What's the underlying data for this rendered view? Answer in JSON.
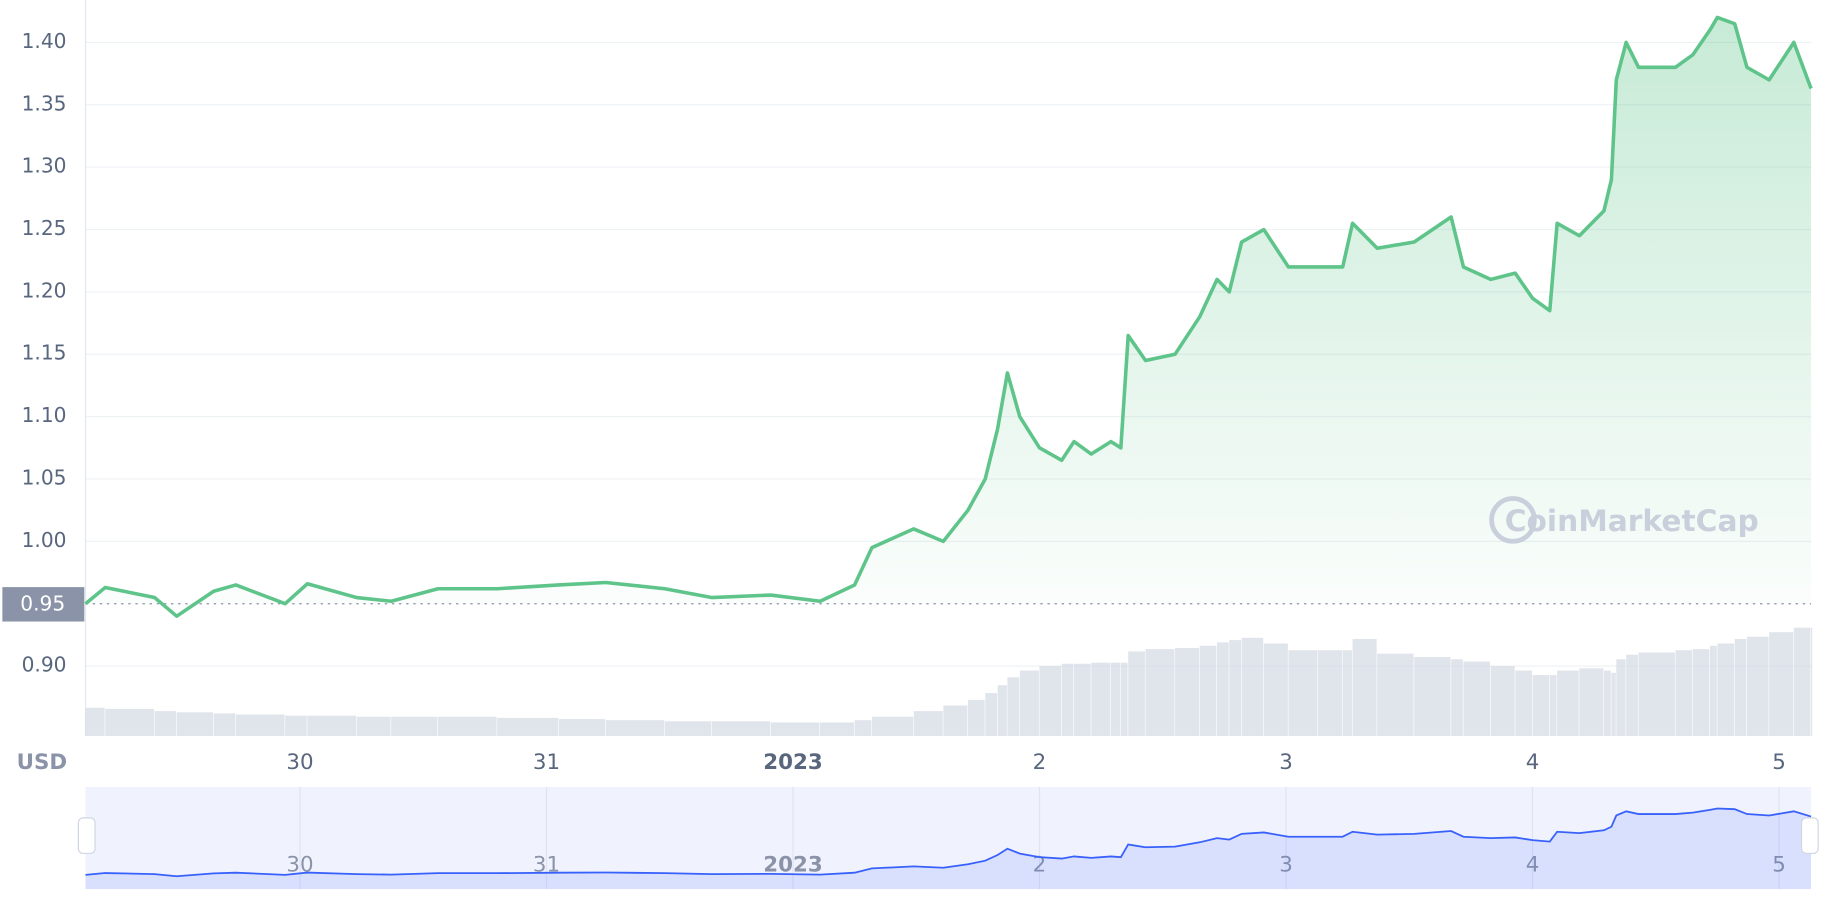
{
  "chart_data": {
    "type": "line",
    "currency_label": "USD",
    "watermark": "CoinMarketCap",
    "price_marker": {
      "value": 0.95,
      "label": "0.95"
    },
    "x": [
      0.13,
      0.21,
      0.41,
      0.5,
      0.65,
      0.74,
      0.94,
      1.03,
      1.23,
      1.37,
      1.56,
      1.8,
      2.05,
      2.24,
      2.48,
      2.67,
      2.91,
      3.11,
      3.25,
      3.32,
      3.49,
      3.61,
      3.71,
      3.78,
      3.83,
      3.87,
      3.92,
      4.0,
      4.09,
      4.14,
      4.21,
      4.29,
      4.33,
      4.36,
      4.43,
      4.55,
      4.65,
      4.72,
      4.77,
      4.82,
      4.91,
      5.01,
      5.13,
      5.23,
      5.27,
      5.37,
      5.52,
      5.67,
      5.72,
      5.83,
      5.93,
      6.0,
      6.07,
      6.1,
      6.19,
      6.29,
      6.32,
      6.34,
      6.38,
      6.43,
      6.58,
      6.65,
      6.72,
      6.75,
      6.82,
      6.87,
      6.96,
      7.06,
      7.13
    ],
    "series": [
      {
        "color": "#5ec48a",
        "values": [
          0.95,
          0.963,
          0.955,
          0.94,
          0.96,
          0.965,
          0.95,
          0.966,
          0.955,
          0.952,
          0.962,
          0.962,
          0.965,
          0.967,
          0.962,
          0.955,
          0.957,
          0.952,
          0.965,
          0.995,
          1.01,
          1.0,
          1.025,
          1.05,
          1.09,
          1.135,
          1.1,
          1.075,
          1.065,
          1.08,
          1.07,
          1.08,
          1.075,
          1.165,
          1.145,
          1.15,
          1.18,
          1.21,
          1.2,
          1.24,
          1.25,
          1.22,
          1.22,
          1.22,
          1.255,
          1.235,
          1.24,
          1.26,
          1.22,
          1.21,
          1.215,
          1.195,
          1.185,
          1.255,
          1.245,
          1.265,
          1.29,
          1.37,
          1.4,
          1.38,
          1.38,
          1.39,
          1.41,
          1.42,
          1.415,
          1.38,
          1.37,
          1.4,
          1.363
        ]
      }
    ],
    "volume": {
      "color": "#d3d8e2",
      "values": [
        25,
        24,
        22,
        21,
        20,
        19,
        18,
        18,
        17,
        17,
        17,
        16,
        15,
        14,
        13,
        13,
        12,
        12,
        14,
        17,
        22,
        27,
        32,
        38,
        45,
        52,
        58,
        62,
        64,
        64,
        65,
        65,
        65,
        75,
        77,
        78,
        80,
        83,
        85,
        87,
        82,
        76,
        76,
        76,
        86,
        73,
        70,
        68,
        66,
        62,
        58,
        54,
        54,
        58,
        60,
        58,
        56,
        68,
        72,
        74,
        76,
        77,
        80,
        82,
        86,
        88,
        92,
        96,
        96
      ]
    },
    "navigator_color": "#3861fb",
    "xlim": [
      0.13,
      7.13
    ],
    "xticks": [
      {
        "value": 1,
        "label": "30"
      },
      {
        "value": 2,
        "label": "31"
      },
      {
        "value": 3,
        "label": "2023"
      },
      {
        "value": 4,
        "label": "2"
      },
      {
        "value": 5,
        "label": "3"
      },
      {
        "value": 6,
        "label": "4"
      },
      {
        "value": 7,
        "label": "5"
      }
    ],
    "ylim": [
      0.844,
      1.434
    ],
    "yticks": [
      {
        "value": 0.9,
        "label": "0.90"
      },
      {
        "value": 1.0,
        "label": "1.00"
      },
      1.05,
      {
        "value": 1.1,
        "label": "1.10"
      },
      1.15,
      {
        "value": 1.2,
        "label": "1.20"
      },
      1.25,
      {
        "value": 1.3,
        "label": "1.30"
      },
      1.35,
      {
        "value": 1.4,
        "label": "1.40"
      }
    ],
    "grid": true
  }
}
